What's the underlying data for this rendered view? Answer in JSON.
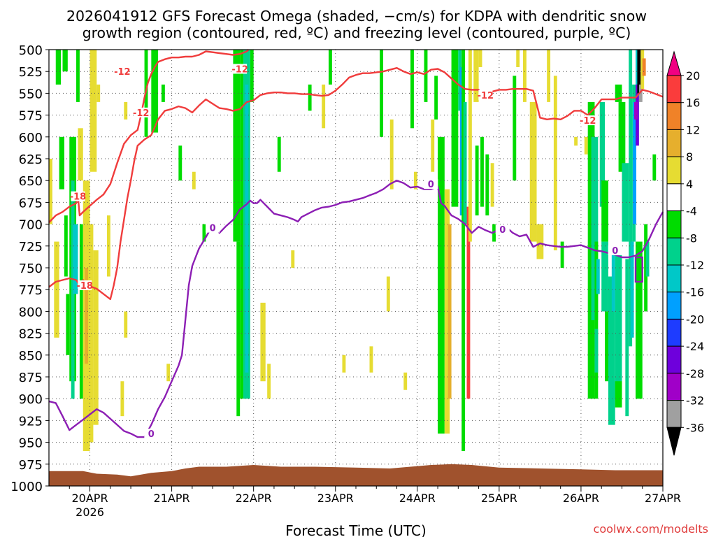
{
  "title_line1": "2026041912 GFS Forecast Omega (shaded, −cm/s) for KDPA with dendritic snow",
  "title_line2": "growth region (contoured, red, ºC) and freezing level (contoured, purple, ºC)",
  "xlabel": "Forecast Time (UTC)",
  "credit": "coolwx.com/modelts",
  "chart_data": {
    "type": "heatmap",
    "title": "2026041912 GFS Forecast Omega (shaded, −cm/s) for KDPA with dendritic snow growth region (contoured, red, ºC) and freezing level (contoured, purple, ºC)",
    "xlabel": "Forecast Time (UTC)",
    "ylabel": "",
    "y_axis": {
      "unit": "hPa",
      "inverted": true,
      "range": [
        1000,
        500
      ],
      "ticks": [
        500,
        525,
        550,
        575,
        600,
        625,
        650,
        675,
        700,
        725,
        750,
        775,
        800,
        825,
        850,
        875,
        900,
        925,
        950,
        975,
        1000
      ]
    },
    "x_axis": {
      "range_hours_from_init": [
        0,
        180
      ],
      "ticks": [
        {
          "label": "20APR",
          "sublabel": "2026",
          "hour": 12
        },
        {
          "label": "21APR",
          "hour": 36
        },
        {
          "label": "22APR",
          "hour": 60
        },
        {
          "label": "23APR",
          "hour": 84
        },
        {
          "label": "24APR",
          "hour": 108
        },
        {
          "label": "25APR",
          "hour": 132
        },
        {
          "label": "26APR",
          "hour": 156
        },
        {
          "label": "27APR",
          "hour": 180
        }
      ]
    },
    "grid": true,
    "colorbar": {
      "levels": [
        -36,
        -32,
        -28,
        -24,
        -20,
        -16,
        -12,
        -8,
        -4,
        4,
        8,
        12,
        16,
        20
      ],
      "labels": [
        "20",
        "16",
        "12",
        "8",
        "4",
        "-4",
        "-8",
        "-12",
        "-16",
        "-20",
        "-24",
        "-28",
        "-32",
        "-36"
      ],
      "colors": [
        "#000000",
        "#a0a0a0",
        "#a000c8",
        "#6e00dc",
        "#1e3cff",
        "#00a0ff",
        "#00c8c8",
        "#00d28c",
        "#00dc00",
        "#ffffff",
        "#e6dc32",
        "#e6af2d",
        "#f08228",
        "#fa3c3c",
        "#f00082"
      ]
    },
    "contours": [
      {
        "color": "#f03c3c",
        "labels": [
          "-18",
          "-12",
          "-18",
          "-12",
          "-12",
          "-12",
          "-12"
        ],
        "paths_hour_hpa": [
          [
            [
              0,
              698
            ],
            [
              2,
              690
            ],
            [
              4,
              686
            ],
            [
              6,
              680
            ],
            [
              8,
              676
            ],
            [
              8.5,
              668
            ],
            [
              9,
              690
            ],
            [
              10,
              686
            ],
            [
              12,
              679
            ],
            [
              14,
              672
            ],
            [
              16,
              666
            ],
            [
              18,
              654
            ],
            [
              20,
              630
            ],
            [
              22,
              608
            ],
            [
              24,
              598
            ],
            [
              26,
              592
            ],
            [
              27,
              575
            ],
            [
              28,
              555
            ],
            [
              29,
              538
            ],
            [
              30,
              528
            ],
            [
              31,
              520
            ],
            [
              32,
              514
            ],
            [
              34,
              511
            ],
            [
              36,
              509
            ],
            [
              38,
              509
            ],
            [
              40,
              508
            ],
            [
              42,
              508
            ],
            [
              44,
              506
            ],
            [
              46,
              502
            ],
            [
              48,
              503
            ],
            [
              50,
              504
            ],
            [
              52,
              505
            ],
            [
              54,
              506
            ],
            [
              56,
              505
            ],
            [
              58,
              502
            ],
            [
              58.5,
              500
            ]
          ],
          [
            [
              0,
              772
            ],
            [
              2,
              766
            ],
            [
              4,
              764
            ],
            [
              6,
              762
            ],
            [
              8,
              764
            ],
            [
              9,
              770
            ],
            [
              10,
              764
            ],
            [
              12,
              771
            ],
            [
              14,
              774
            ],
            [
              16,
              780
            ],
            [
              18,
              786
            ],
            [
              19,
              770
            ],
            [
              20,
              750
            ],
            [
              21,
              720
            ],
            [
              22,
              695
            ],
            [
              23,
              670
            ],
            [
              24,
              650
            ],
            [
              25,
              628
            ],
            [
              26,
              610
            ],
            [
              28,
              603
            ],
            [
              30,
              598
            ],
            [
              32,
              580
            ],
            [
              34,
              570
            ],
            [
              36,
              568
            ],
            [
              38,
              565
            ],
            [
              40,
              567
            ],
            [
              42,
              572
            ],
            [
              44,
              564
            ],
            [
              46,
              557
            ],
            [
              48,
              562
            ],
            [
              50,
              567
            ],
            [
              52,
              568
            ],
            [
              54,
              570
            ],
            [
              56,
              568
            ],
            [
              58,
              560
            ],
            [
              60,
              558
            ],
            [
              62,
              552
            ],
            [
              64,
              550
            ],
            [
              66,
              549
            ],
            [
              68,
              549
            ],
            [
              70,
              550
            ],
            [
              72,
              550
            ],
            [
              74,
              551
            ],
            [
              76,
              551
            ],
            [
              78,
              552
            ],
            [
              80,
              553
            ],
            [
              82,
              552
            ],
            [
              84,
              547
            ],
            [
              86,
              540
            ],
            [
              88,
              532
            ],
            [
              90,
              529
            ],
            [
              92,
              527
            ],
            [
              94,
              527
            ],
            [
              96,
              526
            ],
            [
              98,
              525
            ],
            [
              100,
              523
            ],
            [
              102,
              521
            ],
            [
              104,
              525
            ],
            [
              106,
              528
            ],
            [
              108,
              526
            ],
            [
              110,
              528
            ],
            [
              112,
              523
            ],
            [
              114,
              522
            ],
            [
              116,
              526
            ],
            [
              118,
              533
            ],
            [
              120,
              540
            ],
            [
              122,
              545
            ],
            [
              124,
              546
            ],
            [
              126,
              546
            ],
            [
              127,
              556
            ],
            [
              128,
              552
            ],
            [
              130,
              548
            ],
            [
              132,
              546
            ],
            [
              134,
              546
            ],
            [
              136,
              545
            ],
            [
              138,
              545
            ],
            [
              140,
              545
            ],
            [
              142,
              547
            ],
            [
              144,
              578
            ],
            [
              146,
              580
            ],
            [
              148,
              579
            ],
            [
              150,
              580
            ],
            [
              152,
              576
            ],
            [
              154,
              570
            ],
            [
              156,
              570
            ],
            [
              158,
              575
            ],
            [
              160,
              567
            ],
            [
              162,
              557
            ],
            [
              164,
              557
            ],
            [
              166,
              557
            ],
            [
              168,
              555
            ],
            [
              170,
              555
            ],
            [
              172,
              555
            ],
            [
              174,
              546
            ],
            [
              176,
              548
            ],
            [
              178,
              551
            ],
            [
              180,
              554
            ]
          ]
        ]
      },
      {
        "color": "#8c1eb4",
        "labels": [
          "0",
          "0",
          "0",
          "0",
          "0"
        ],
        "paths_hour_hpa": [
          [
            [
              0,
              903
            ],
            [
              2,
              905
            ],
            [
              4,
              920
            ],
            [
              6,
              936
            ],
            [
              8,
              930
            ],
            [
              10,
              924
            ],
            [
              12,
              918
            ],
            [
              14,
              912
            ],
            [
              16,
              916
            ],
            [
              18,
              923
            ],
            [
              20,
              930
            ],
            [
              22,
              937
            ],
            [
              24,
              940
            ],
            [
              26,
              944
            ],
            [
              28,
              944
            ],
            [
              30,
              930
            ],
            [
              32,
              912
            ],
            [
              34,
              898
            ],
            [
              36,
              880
            ],
            [
              38,
              862
            ],
            [
              39,
              850
            ],
            [
              40,
              810
            ],
            [
              41,
              770
            ],
            [
              42,
              748
            ],
            [
              43,
              738
            ],
            [
              44,
              728
            ],
            [
              46,
              715
            ],
            [
              47,
              708
            ],
            [
              48,
              700
            ],
            [
              49,
              705
            ],
            [
              50,
              710
            ],
            [
              52,
              702
            ],
            [
              54,
              695
            ],
            [
              56,
              683
            ],
            [
              58,
              677
            ],
            [
              59,
              673
            ],
            [
              60,
              676
            ],
            [
              61,
              676
            ],
            [
              62,
              672
            ],
            [
              64,
              680
            ],
            [
              66,
              688
            ],
            [
              68,
              690
            ],
            [
              70,
              692
            ],
            [
              72,
              695
            ],
            [
              73,
              697
            ],
            [
              74,
              692
            ],
            [
              76,
              688
            ],
            [
              78,
              684
            ],
            [
              80,
              681
            ],
            [
              82,
              680
            ],
            [
              84,
              678
            ],
            [
              86,
              675
            ],
            [
              88,
              674
            ],
            [
              90,
              672
            ],
            [
              92,
              670
            ],
            [
              94,
              667
            ],
            [
              96,
              664
            ],
            [
              98,
              660
            ],
            [
              100,
              654
            ],
            [
              102,
              650
            ],
            [
              104,
              653
            ],
            [
              106,
              658
            ],
            [
              108,
              657
            ],
            [
              110,
              660
            ],
            [
              112,
              660
            ],
            [
              114,
              657
            ],
            [
              115,
              676
            ],
            [
              116,
              679
            ],
            [
              118,
              690
            ],
            [
              120,
              694
            ],
            [
              122,
              700
            ],
            [
              124,
              710
            ],
            [
              126,
              703
            ],
            [
              128,
              707
            ],
            [
              130,
              710
            ],
            [
              132,
              706
            ],
            [
              134,
              703
            ],
            [
              136,
              710
            ],
            [
              138,
              714
            ],
            [
              140,
              712
            ],
            [
              142,
              726
            ],
            [
              144,
              722
            ],
            [
              146,
              724
            ],
            [
              148,
              725
            ],
            [
              150,
              726
            ],
            [
              152,
              726
            ],
            [
              154,
              725
            ],
            [
              156,
              724
            ],
            [
              158,
              727
            ],
            [
              160,
              730
            ],
            [
              162,
              731
            ],
            [
              164,
              733
            ],
            [
              166,
              735
            ],
            [
              168,
              738
            ],
            [
              170,
              738
            ],
            [
              172,
              736
            ],
            [
              174,
              731
            ],
            [
              176,
              717
            ],
            [
              178,
              700
            ],
            [
              180,
              686
            ]
          ]
        ]
      }
    ],
    "terrain": {
      "color": "#a0522d",
      "top_hpa_range": [
        985,
        975
      ]
    }
  }
}
